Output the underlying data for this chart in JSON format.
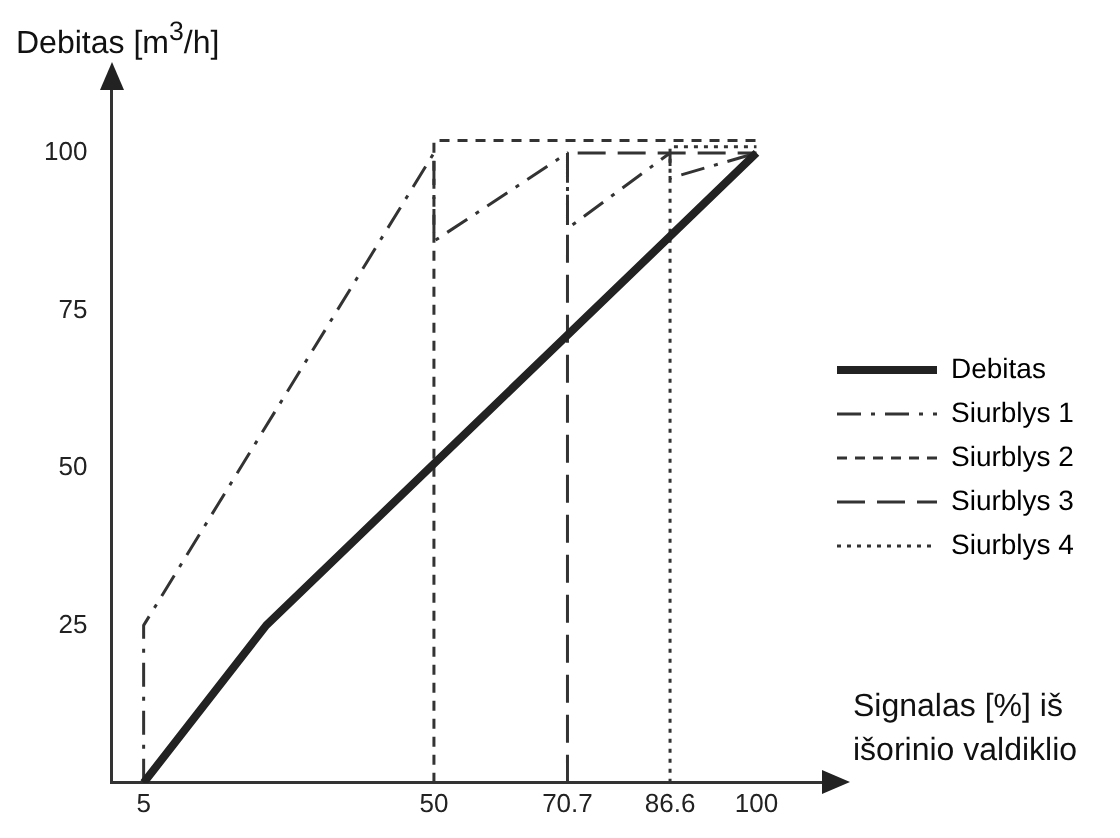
{
  "chart_data": {
    "type": "line",
    "xlabel": "Signalas [%] iš išorinio valdiklio",
    "ylabel": "Debitas [m$^{3}$/h]",
    "xlim": [
      0,
      110
    ],
    "ylim": [
      0,
      110
    ],
    "xticks": [
      5,
      50,
      70.7,
      86.6,
      100
    ],
    "yticks": [
      25,
      50,
      75,
      100
    ],
    "grid": false,
    "legend": "right",
    "marker": "none",
    "series": [
      {
        "name": "Debitas",
        "color": "#222222",
        "line_style": "solid",
        "x": [
          5,
          24,
          100
        ],
        "values": [
          0,
          25,
          100
        ]
      },
      {
        "name": "Siurblys 1",
        "color": "#333333",
        "line_style": "dashdot",
        "x": [
          5,
          5,
          50,
          50,
          70.7,
          70.7,
          86.6,
          86.6,
          100
        ],
        "values": [
          0,
          25,
          100,
          86,
          100,
          88,
          100,
          96,
          100
        ]
      },
      {
        "name": "Siurblys 2",
        "color": "#333333",
        "line_style": "dashed",
        "x": [
          50,
          50,
          100
        ],
        "values": [
          0,
          102,
          102
        ]
      },
      {
        "name": "Siurblys 3",
        "color": "#333333",
        "line_style": "longdash",
        "x": [
          70.7,
          70.7,
          100
        ],
        "values": [
          0,
          100,
          100
        ]
      },
      {
        "name": "Siurblys 4",
        "color": "#333333",
        "line_style": "dotted",
        "x": [
          86.6,
          86.6,
          100
        ],
        "values": [
          0,
          101,
          101
        ]
      }
    ]
  }
}
